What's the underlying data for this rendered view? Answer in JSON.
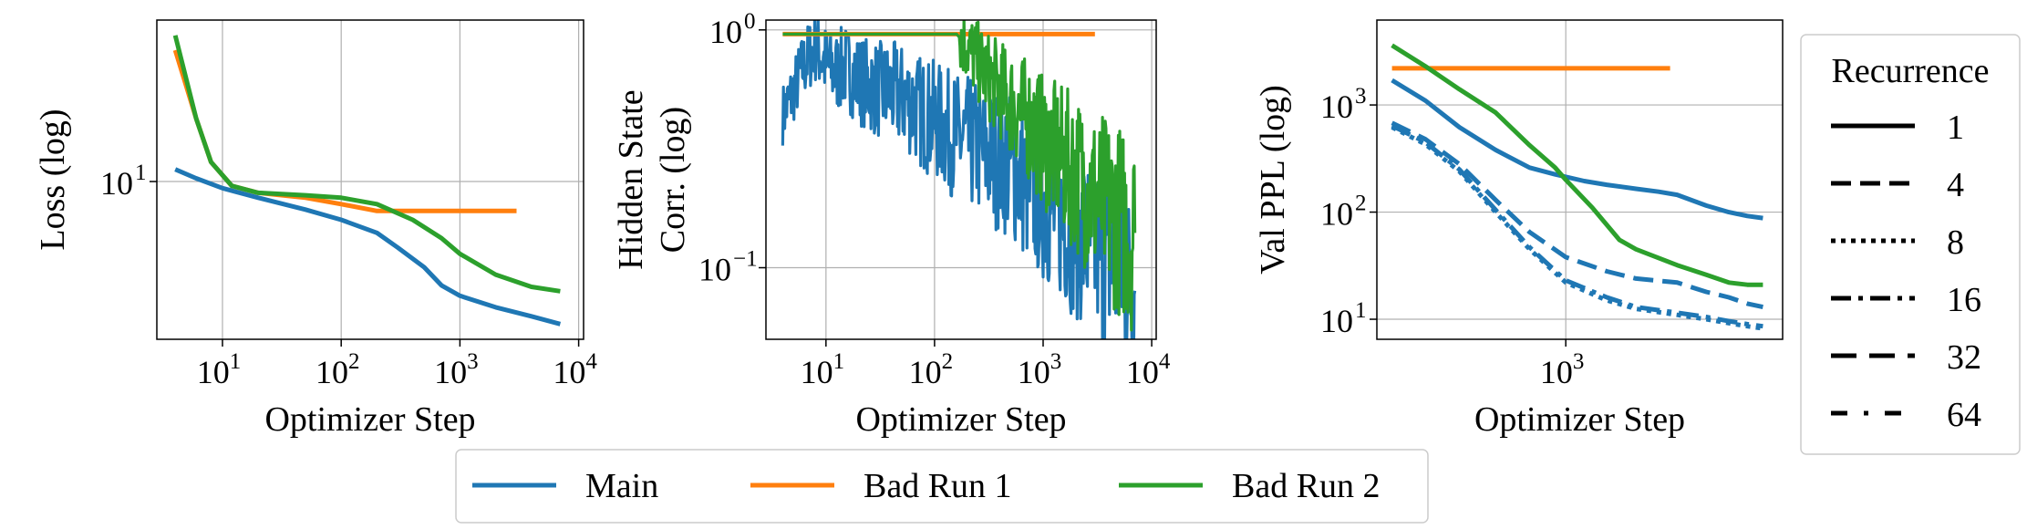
{
  "colors": {
    "main": "#1f77b4",
    "bad1": "#ff7f0e",
    "bad2": "#2ca02c",
    "grid": "#b0b0b0"
  },
  "legend_bottom": {
    "entries": [
      {
        "label": "Main",
        "color": "#1f77b4"
      },
      {
        "label": "Bad Run 1",
        "color": "#ff7f0e"
      },
      {
        "label": "Bad Run 2",
        "color": "#2ca02c"
      }
    ]
  },
  "legend_right": {
    "title": "Recurrence",
    "entries": [
      {
        "label": "1",
        "dash": "solid"
      },
      {
        "label": "4",
        "dash": "dashed"
      },
      {
        "label": "8",
        "dash": "dotted"
      },
      {
        "label": "16",
        "dash": "dashdot"
      },
      {
        "label": "32",
        "dash": "long-dash"
      },
      {
        "label": "64",
        "dash": "loose-dashdot"
      }
    ]
  },
  "chart_data": [
    {
      "type": "line",
      "xlabel": "Optimizer Step",
      "ylabel": "Loss (log)",
      "xscale": "log",
      "yscale": "log",
      "xlim": [
        2.8,
        11000
      ],
      "ylim": [
        2.3,
        45
      ],
      "xticks": [
        {
          "v": 10,
          "label": "10",
          "exp": "1"
        },
        {
          "v": 100,
          "label": "10",
          "exp": "2"
        },
        {
          "v": 1000,
          "label": "10",
          "exp": "3"
        },
        {
          "v": 10000,
          "label": "10",
          "exp": "4"
        }
      ],
      "yticks": [
        {
          "v": 10,
          "label": "10",
          "exp": "1"
        }
      ],
      "grid": true,
      "series": [
        {
          "name": "Main",
          "color": "#1f77b4",
          "points": [
            [
              4,
              11.2
            ],
            [
              6,
              10.3
            ],
            [
              10,
              9.4
            ],
            [
              20,
              8.6
            ],
            [
              50,
              7.7
            ],
            [
              100,
              7.0
            ],
            [
              200,
              6.2
            ],
            [
              300,
              5.4
            ],
            [
              500,
              4.5
            ],
            [
              700,
              3.8
            ],
            [
              1000,
              3.45
            ],
            [
              2000,
              3.1
            ],
            [
              4000,
              2.85
            ],
            [
              7000,
              2.65
            ]
          ]
        },
        {
          "name": "Bad Run 1",
          "color": "#ff7f0e",
          "points": [
            [
              4,
              34
            ],
            [
              6,
              18
            ],
            [
              8,
              12
            ],
            [
              12,
              9.6
            ],
            [
              20,
              9.0
            ],
            [
              50,
              8.6
            ],
            [
              100,
              8.1
            ],
            [
              200,
              7.6
            ],
            [
              500,
              7.6
            ],
            [
              1000,
              7.6
            ],
            [
              3000,
              7.6
            ]
          ]
        },
        {
          "name": "Bad Run 2",
          "color": "#2ca02c",
          "points": [
            [
              4,
              39
            ],
            [
              6,
              18
            ],
            [
              8,
              12
            ],
            [
              12,
              9.6
            ],
            [
              20,
              9.0
            ],
            [
              50,
              8.8
            ],
            [
              100,
              8.6
            ],
            [
              200,
              8.1
            ],
            [
              400,
              7.0
            ],
            [
              700,
              5.9
            ],
            [
              1000,
              5.1
            ],
            [
              2000,
              4.2
            ],
            [
              4000,
              3.75
            ],
            [
              7000,
              3.6
            ]
          ]
        }
      ]
    },
    {
      "type": "line",
      "xlabel": "Optimizer Step",
      "ylabel": "Hidden State Corr. (log)",
      "xscale": "log",
      "yscale": "log",
      "xlim": [
        2.8,
        11000
      ],
      "ylim": [
        0.05,
        1.1
      ],
      "xticks": [
        {
          "v": 10,
          "label": "10",
          "exp": "1"
        },
        {
          "v": 100,
          "label": "10",
          "exp": "2"
        },
        {
          "v": 1000,
          "label": "10",
          "exp": "3"
        },
        {
          "v": 10000,
          "label": "10",
          "exp": "4"
        }
      ],
      "yticks": [
        {
          "v": 1,
          "label": "10",
          "exp": "0"
        },
        {
          "v": 0.1,
          "label": "10",
          "exp": "−1"
        }
      ],
      "grid": true,
      "series": [
        {
          "name": "Main",
          "color": "#1f77b4",
          "points": [
            [
              4,
              0.44
            ],
            [
              5,
              0.55
            ],
            [
              6,
              0.68
            ],
            [
              7,
              0.78
            ],
            [
              8,
              0.85
            ],
            [
              10,
              0.72
            ],
            [
              12,
              0.66
            ],
            [
              15,
              0.7
            ],
            [
              20,
              0.62
            ],
            [
              30,
              0.56
            ],
            [
              40,
              0.55
            ],
            [
              60,
              0.5
            ],
            [
              80,
              0.44
            ],
            [
              100,
              0.42
            ],
            [
              150,
              0.36
            ],
            [
              200,
              0.34
            ],
            [
              300,
              0.3
            ],
            [
              500,
              0.27
            ],
            [
              700,
              0.22
            ],
            [
              1000,
              0.19
            ],
            [
              1500,
              0.16
            ],
            [
              2000,
              0.14
            ],
            [
              3000,
              0.12
            ],
            [
              5000,
              0.1
            ],
            [
              7000,
              0.08
            ]
          ],
          "noise": 0.13
        },
        {
          "name": "Bad Run 1",
          "color": "#ff7f0e",
          "points": [
            [
              4,
              0.96
            ],
            [
              100,
              0.96
            ],
            [
              1000,
              0.96
            ],
            [
              3000,
              0.96
            ]
          ]
        },
        {
          "name": "Bad Run 2",
          "color": "#2ca02c",
          "points": [
            [
              4,
              0.96
            ],
            [
              100,
              0.96
            ],
            [
              160,
              0.96
            ],
            [
              200,
              0.85
            ],
            [
              300,
              0.65
            ],
            [
              500,
              0.5
            ],
            [
              800,
              0.4
            ],
            [
              1000,
              0.34
            ],
            [
              2000,
              0.25
            ],
            [
              3000,
              0.2
            ],
            [
              5000,
              0.16
            ],
            [
              7000,
              0.14
            ]
          ],
          "noise": 0.14,
          "noise_from": 170
        }
      ]
    },
    {
      "type": "line",
      "xlabel": "Optimizer Step",
      "ylabel": "Val PPL (log)",
      "xscale": "log",
      "yscale": "log",
      "xlim": [
        155,
        8500
      ],
      "ylim": [
        6.5,
        6200
      ],
      "xticks": [
        {
          "v": 1000,
          "label": "10",
          "exp": "3"
        }
      ],
      "yticks": [
        {
          "v": 10,
          "label": "10",
          "exp": "1"
        },
        {
          "v": 100,
          "label": "10",
          "exp": "2"
        },
        {
          "v": 1000,
          "label": "10",
          "exp": "3"
        }
      ],
      "grid": true,
      "series": [
        {
          "name": "Main",
          "recurrence": "1",
          "color": "#1f77b4",
          "dash": "solid",
          "points": [
            [
              180,
              1700
            ],
            [
              250,
              1100
            ],
            [
              350,
              620
            ],
            [
              500,
              380
            ],
            [
              700,
              260
            ],
            [
              900,
              225
            ],
            [
              1200,
              195
            ],
            [
              1500,
              180
            ],
            [
              2000,
              165
            ],
            [
              2500,
              155
            ],
            [
              3000,
              145
            ],
            [
              4000,
              115
            ],
            [
              5000,
              100
            ],
            [
              6000,
              92
            ],
            [
              7000,
              88
            ]
          ]
        },
        {
          "name": "Main",
          "recurrence": "4",
          "color": "#1f77b4",
          "dash": "dashed",
          "points": [
            [
              180,
              680
            ],
            [
              250,
              480
            ],
            [
              350,
              280
            ],
            [
              500,
              130
            ],
            [
              700,
              65
            ],
            [
              1000,
              38
            ],
            [
              1500,
              28
            ],
            [
              2000,
              24
            ],
            [
              3000,
              22
            ],
            [
              4000,
              18
            ],
            [
              5000,
              16
            ],
            [
              6000,
              14
            ],
            [
              7000,
              13
            ]
          ]
        },
        {
          "name": "Main",
          "recurrence": "8",
          "color": "#1f77b4",
          "dash": "dotted",
          "points": [
            [
              180,
              620
            ],
            [
              250,
              430
            ],
            [
              350,
              240
            ],
            [
              500,
              100
            ],
            [
              700,
              45
            ],
            [
              1000,
              22
            ],
            [
              1500,
              15
            ],
            [
              2000,
              12.5
            ],
            [
              3000,
              11
            ],
            [
              4000,
              10
            ],
            [
              5000,
              9.2
            ],
            [
              6000,
              8.6
            ],
            [
              7000,
              8.2
            ]
          ]
        },
        {
          "name": "Main",
          "recurrence": "16",
          "color": "#1f77b4",
          "dash": "dashdot",
          "points": [
            [
              180,
              640
            ],
            [
              250,
              450
            ],
            [
              350,
              250
            ],
            [
              500,
              105
            ],
            [
              700,
              47
            ],
            [
              1000,
              23
            ],
            [
              1500,
              16
            ],
            [
              2000,
              13
            ],
            [
              3000,
              11.5
            ],
            [
              4000,
              10.5
            ],
            [
              5000,
              9.6
            ],
            [
              6000,
              9
            ],
            [
              7000,
              8.6
            ]
          ]
        },
        {
          "name": "Bad Run 1",
          "recurrence": "1",
          "color": "#ff7f0e",
          "dash": "solid",
          "points": [
            [
              180,
              2200
            ],
            [
              500,
              2200
            ],
            [
              1000,
              2200
            ],
            [
              2000,
              2200
            ],
            [
              2800,
              2200
            ]
          ]
        },
        {
          "name": "Bad Run 2",
          "recurrence": "1",
          "color": "#2ca02c",
          "dash": "solid",
          "points": [
            [
              180,
              3600
            ],
            [
              250,
              2300
            ],
            [
              350,
              1400
            ],
            [
              500,
              850
            ],
            [
              700,
              420
            ],
            [
              900,
              260
            ],
            [
              1000,
              200
            ],
            [
              1300,
              110
            ],
            [
              1700,
              55
            ],
            [
              2000,
              45
            ],
            [
              3000,
              32
            ],
            [
              4000,
              26
            ],
            [
              5000,
              22
            ],
            [
              6000,
              21
            ],
            [
              7000,
              21
            ]
          ]
        }
      ]
    }
  ]
}
